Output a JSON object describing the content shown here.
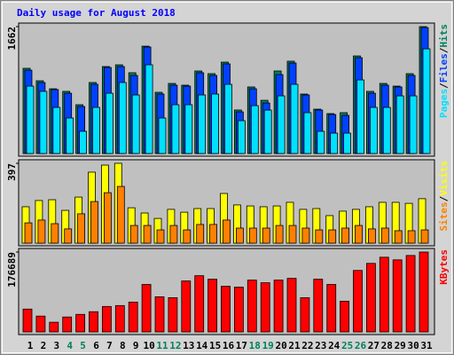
{
  "chart_data": [
    {
      "type": "bar",
      "title": "Daily usage for August 2018",
      "ylim": [
        0,
        1662
      ],
      "yticks": [
        1662
      ],
      "legend_separator": "/",
      "series": [
        {
          "name": "Hits",
          "color": "#00805c",
          "values": [
            1116,
            953,
            848,
            814,
            639,
            930,
            1139,
            1162,
            1058,
            1406,
            802,
            918,
            895,
            1081,
            1046,
            1197,
            570,
            872,
            697,
            1081,
            1209,
            779,
            581,
            523,
            535,
            1278,
            814,
            918,
            883,
            1046,
            1662
          ]
        },
        {
          "name": "Files",
          "color": "#0040ff",
          "values": [
            1092,
            930,
            837,
            790,
            616,
            907,
            1127,
            1139,
            1023,
            1395,
            779,
            895,
            883,
            1058,
            1023,
            1174,
            546,
            848,
            662,
            1034,
            1185,
            767,
            570,
            511,
            500,
            1255,
            790,
            895,
            872,
            1023,
            1650
          ]
        },
        {
          "name": "Pages",
          "color": "#00e0ff",
          "values": [
            883,
            814,
            604,
            465,
            291,
            604,
            790,
            930,
            767,
            1162,
            465,
            639,
            639,
            767,
            779,
            906,
            430,
            627,
            569,
            755,
            906,
            535,
            291,
            267,
            267,
            964,
            604,
            604,
            755,
            755,
            1371
          ]
        }
      ]
    },
    {
      "type": "bar",
      "ylim": [
        0,
        397
      ],
      "yticks": [
        397
      ],
      "legend_separator": "/",
      "series": [
        {
          "name": "Visits",
          "color": "#ffff00",
          "values": [
            181,
            212,
            216,
            163,
            229,
            353,
            388,
            397,
            176,
            150,
            123,
            168,
            154,
            172,
            172,
            247,
            190,
            185,
            181,
            185,
            203,
            168,
            172,
            137,
            159,
            168,
            181,
            203,
            203,
            198,
            221
          ]
        },
        {
          "name": "Sites",
          "color": "#ff8000",
          "values": [
            101,
            115,
            97,
            71,
            146,
            207,
            251,
            282,
            88,
            88,
            66,
            88,
            66,
            93,
            93,
            115,
            75,
            75,
            75,
            88,
            88,
            75,
            66,
            66,
            75,
            88,
            71,
            75,
            62,
            62,
            66
          ]
        }
      ]
    },
    {
      "type": "bar",
      "ylim": [
        0,
        176689
      ],
      "yticks": [
        176689
      ],
      "series": [
        {
          "name": "KBytes",
          "color": "#ff0000",
          "values": [
            50500,
            35000,
            21400,
            33000,
            38800,
            44700,
            56300,
            58300,
            66000,
            105000,
            77700,
            75700,
            112700,
            124400,
            116600,
            101000,
            99000,
            114600,
            108800,
            114600,
            118500,
            75700,
            116600,
            105000,
            68000,
            136000,
            151600,
            165200,
            159400,
            169100,
            176689
          ]
        }
      ],
      "categories": [
        "1",
        "2",
        "3",
        "4",
        "5",
        "6",
        "7",
        "8",
        "9",
        "10",
        "11",
        "12",
        "13",
        "14",
        "15",
        "16",
        "17",
        "18",
        "19",
        "20",
        "21",
        "22",
        "23",
        "24",
        "25",
        "26",
        "27",
        "28",
        "29",
        "30",
        "31"
      ],
      "category_colors": [
        "#000000",
        "#000000",
        "#000000",
        "#00805c",
        "#00805c",
        "#000000",
        "#000000",
        "#000000",
        "#000000",
        "#000000",
        "#00805c",
        "#00805c",
        "#000000",
        "#000000",
        "#000000",
        "#000000",
        "#000000",
        "#00805c",
        "#00805c",
        "#000000",
        "#000000",
        "#000000",
        "#000000",
        "#000000",
        "#00805c",
        "#00805c",
        "#000000",
        "#000000",
        "#000000",
        "#000000",
        "#000000"
      ]
    }
  ]
}
